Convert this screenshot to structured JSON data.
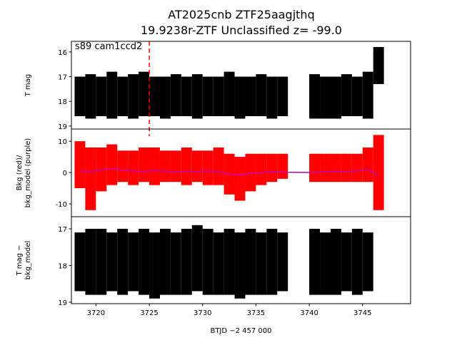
{
  "chart_data": [
    {
      "type": "range",
      "title": "AT2025cnb  ZTF25aagjthq",
      "subtitle": "19.9238r-ZTF Unclassified z= -99.0",
      "annotation": "s89 cam1ccd2",
      "ylabel": "T mag",
      "vline_x": 3725.0,
      "vline_color": "#ff0000",
      "xlim": [
        3717.7,
        3749.5
      ],
      "ylim": [
        19.12,
        15.57
      ],
      "yticks": [
        16,
        17,
        18,
        19
      ],
      "color": "#000000",
      "x": [
        3718.5,
        3719.5,
        3720.5,
        3721.5,
        3722.5,
        3723.5,
        3724.5,
        3725.5,
        3726.5,
        3727.5,
        3728.5,
        3729.5,
        3730.5,
        3731.5,
        3732.5,
        3733.5,
        3734.5,
        3735.5,
        3736.5,
        3737.5,
        3740.5,
        3741.5,
        3742.5,
        3743.5,
        3744.5,
        3745.5,
        3746.5
      ],
      "y_min": [
        17.0,
        16.9,
        17.0,
        16.8,
        17.0,
        16.9,
        16.8,
        17.0,
        17.0,
        16.9,
        17.0,
        16.9,
        17.0,
        17.0,
        16.8,
        17.0,
        17.0,
        16.9,
        17.0,
        17.0,
        16.9,
        17.0,
        17.0,
        16.9,
        17.0,
        16.8,
        15.8
      ],
      "y_max": [
        18.6,
        18.7,
        18.6,
        18.7,
        18.6,
        18.7,
        18.6,
        18.6,
        18.7,
        18.6,
        18.6,
        18.7,
        18.6,
        18.6,
        18.6,
        18.7,
        18.6,
        18.6,
        18.7,
        18.6,
        18.7,
        18.7,
        18.7,
        18.6,
        18.6,
        18.7,
        17.3
      ]
    },
    {
      "type": "range",
      "ylabel": "Bkg (red)/\nbkg_model (purple)",
      "xlim": [
        3717.7,
        3749.5
      ],
      "ylim": [
        -14.1,
        13.9
      ],
      "yticks": [
        -10,
        0,
        10
      ],
      "color": "#ff0000",
      "line_color": "#bf00bf",
      "x": [
        3718.5,
        3719.5,
        3720.5,
        3721.5,
        3722.5,
        3723.5,
        3724.5,
        3725.5,
        3726.5,
        3727.5,
        3728.5,
        3729.5,
        3730.5,
        3731.5,
        3732.5,
        3733.5,
        3734.5,
        3735.5,
        3736.5,
        3737.5,
        3740.5,
        3741.5,
        3742.5,
        3743.5,
        3744.5,
        3745.5,
        3746.5
      ],
      "y_min": [
        -5,
        -12,
        -6,
        -4,
        -3,
        -4,
        -3,
        -4,
        -3,
        -3,
        -4,
        -3,
        -4,
        -4,
        -7,
        -9,
        -6,
        -4,
        -3,
        -2,
        -3,
        -3,
        -3,
        -3,
        -3,
        -3,
        -12
      ],
      "y_max": [
        10,
        8,
        8,
        9,
        7,
        7,
        8,
        8,
        7,
        7,
        8,
        7,
        7,
        8,
        6,
        5,
        6,
        6,
        6,
        6,
        6,
        6,
        6,
        6,
        6,
        8,
        12
      ],
      "model": [
        0.5,
        0.3,
        0.8,
        1.2,
        0.8,
        0.5,
        0.3,
        0.6,
        0.4,
        0.2,
        0.4,
        0.3,
        0.5,
        0.2,
        -0.5,
        -0.8,
        -0.3,
        0,
        0.2,
        0.1,
        0,
        0.2,
        0.4,
        0.3,
        0.5,
        1.0,
        -1.0
      ]
    },
    {
      "type": "range",
      "ylabel": "T mag −\nbkg_model",
      "xlabel": "BTJD −2 457 000",
      "xlim": [
        3717.7,
        3749.5
      ],
      "ylim": [
        19.04,
        16.67
      ],
      "yticks": [
        17,
        18,
        19
      ],
      "xticks": [
        3720,
        3725,
        3730,
        3735,
        3740,
        3745
      ],
      "color": "#000000",
      "x": [
        3718.5,
        3719.5,
        3720.5,
        3721.5,
        3722.5,
        3723.5,
        3724.5,
        3725.5,
        3726.5,
        3727.5,
        3728.5,
        3729.5,
        3730.5,
        3731.5,
        3732.5,
        3733.5,
        3734.5,
        3735.5,
        3736.5,
        3737.5,
        3740.5,
        3741.5,
        3742.5,
        3743.5,
        3744.5,
        3745.5
      ],
      "y_min": [
        17.1,
        17.0,
        17.0,
        17.1,
        17.0,
        17.1,
        17.0,
        17.1,
        17.0,
        17.1,
        17.0,
        16.9,
        17.0,
        17.1,
        17.0,
        17.1,
        17.0,
        17.1,
        17.0,
        17.1,
        17.0,
        17.1,
        17.0,
        17.1,
        17.0,
        17.1
      ],
      "y_max": [
        18.7,
        18.8,
        18.8,
        18.7,
        18.8,
        18.7,
        18.8,
        18.9,
        18.8,
        18.8,
        18.8,
        18.7,
        18.8,
        18.8,
        18.8,
        18.9,
        18.8,
        18.8,
        18.8,
        18.7,
        18.8,
        18.8,
        18.8,
        18.7,
        18.8,
        18.7
      ]
    }
  ]
}
